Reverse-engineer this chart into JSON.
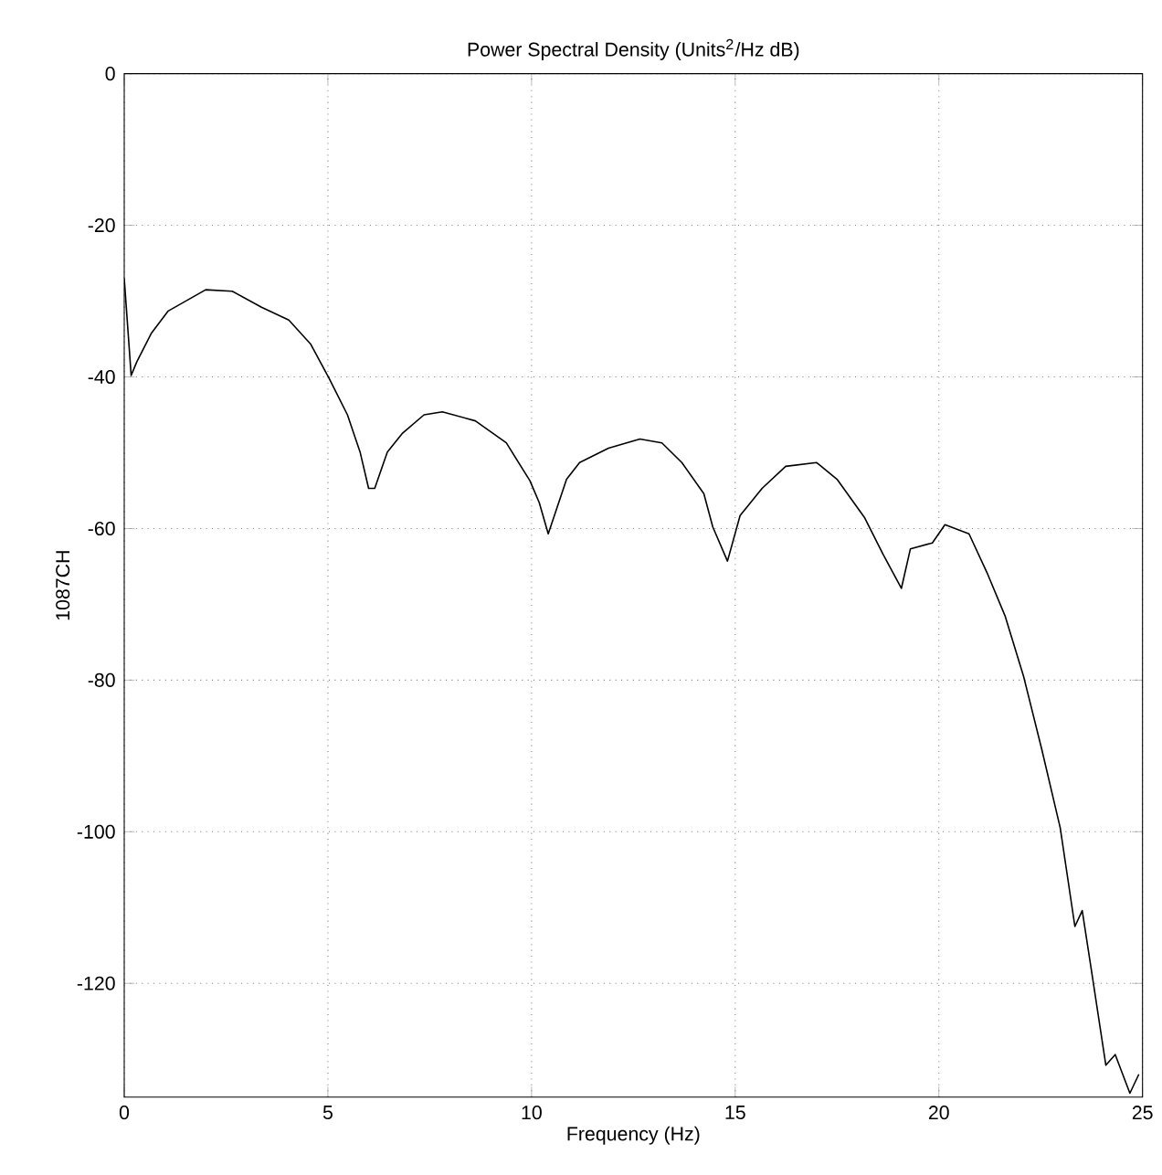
{
  "chart_data": {
    "type": "line",
    "title": "Power Spectral Density (Units$^{2}$/Hz dB)",
    "xlabel": "Frequency (Hz)",
    "ylabel": "1087CH",
    "xlim": [
      0,
      25
    ],
    "ylim": [
      -135,
      0
    ],
    "xticks": [
      0,
      5,
      10,
      15,
      20,
      25
    ],
    "yticks": [
      -120,
      -100,
      -80,
      -60,
      -40,
      -20,
      0
    ],
    "grid": true,
    "marker": "none",
    "line_style": "solid",
    "series": [
      {
        "color": "#000000",
        "x": [
          0,
          0.17,
          0.31,
          0.67,
          1.08,
          2.0,
          2.65,
          3.37,
          4.04,
          4.58,
          5.03,
          5.48,
          5.79,
          6.0,
          6.15,
          6.46,
          6.82,
          7.36,
          7.81,
          8.62,
          9.38,
          9.96,
          10.19,
          10.41,
          10.86,
          11.18,
          11.89,
          12.66,
          13.2,
          13.69,
          14.23,
          14.45,
          14.81,
          15.12,
          15.66,
          16.24,
          17.0,
          17.5,
          18.18,
          18.63,
          19.08,
          19.3,
          19.84,
          20.15,
          20.74,
          21.18,
          21.63,
          22.08,
          22.53,
          22.98,
          23.34,
          23.52,
          23.74,
          24.1,
          24.33,
          24.69,
          24.91
        ],
        "values": [
          -27,
          -39.8,
          -38,
          -34.2,
          -31.3,
          -28.5,
          -28.7,
          -30.8,
          -32.5,
          -35.7,
          -40.2,
          -45,
          -49.9,
          -54.7,
          -54.7,
          -49.9,
          -47.5,
          -45,
          -44.6,
          -45.8,
          -48.7,
          -53.7,
          -56.6,
          -60.7,
          -53.5,
          -51.3,
          -49.4,
          -48.2,
          -48.7,
          -51.3,
          -55.4,
          -59.8,
          -64.3,
          -58.3,
          -54.7,
          -51.8,
          -51.3,
          -53.5,
          -58.6,
          -63.4,
          -67.9,
          -62.7,
          -61.9,
          -59.5,
          -60.7,
          -65.8,
          -71.6,
          -79.5,
          -89.2,
          -99.5,
          -112.5,
          -110.4,
          -118.1,
          -130.8,
          -129.4,
          -134.5,
          -132
        ]
      }
    ]
  }
}
